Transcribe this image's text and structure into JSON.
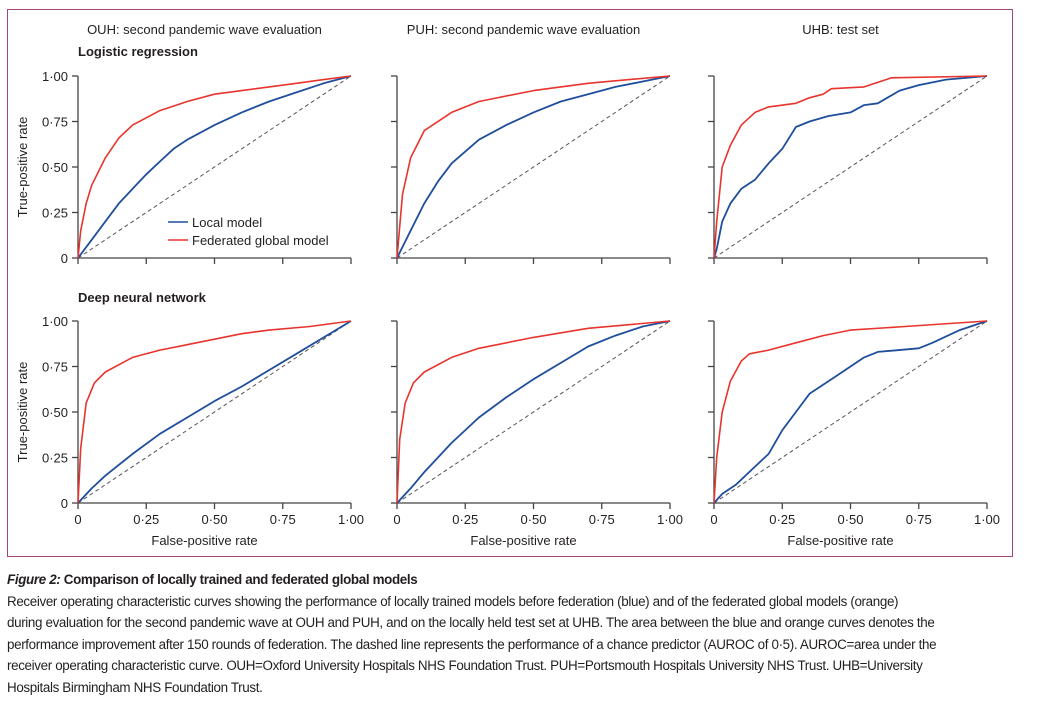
{
  "chart_data": {
    "type": "line",
    "xlabel": "False-positive rate",
    "ylabel": "True-positive rate",
    "xlim": [
      0,
      1
    ],
    "ylim": [
      0,
      1
    ],
    "xticks": [
      "0",
      "0·25",
      "0·50",
      "0·75",
      "1·00"
    ],
    "yticks": [
      "0",
      "0·25",
      "0·50",
      "0·75",
      "1·00"
    ],
    "legend": {
      "placement": "bottom-right",
      "entries": [
        "Local model",
        "Federated global model"
      ]
    },
    "colors": {
      "local": "#1f4e9c",
      "federated": "#e8342c",
      "chance": "#555555"
    },
    "columns": [
      "OUH: second pandemic wave evaluation",
      "PUH: second pandemic wave evaluation",
      "UHB: test set"
    ],
    "rows": [
      "Logistic regression",
      "Deep neural network"
    ],
    "panels": [
      {
        "row": 0,
        "col": 0,
        "local": [
          [
            0,
            0
          ],
          [
            0.05,
            0.1
          ],
          [
            0.1,
            0.2
          ],
          [
            0.15,
            0.3
          ],
          [
            0.2,
            0.38
          ],
          [
            0.25,
            0.46
          ],
          [
            0.3,
            0.53
          ],
          [
            0.35,
            0.6
          ],
          [
            0.4,
            0.65
          ],
          [
            0.5,
            0.73
          ],
          [
            0.6,
            0.8
          ],
          [
            0.7,
            0.86
          ],
          [
            0.8,
            0.91
          ],
          [
            0.9,
            0.96
          ],
          [
            1,
            1
          ]
        ],
        "federated": [
          [
            0,
            0
          ],
          [
            0.01,
            0.15
          ],
          [
            0.03,
            0.3
          ],
          [
            0.05,
            0.4
          ],
          [
            0.1,
            0.55
          ],
          [
            0.15,
            0.66
          ],
          [
            0.2,
            0.73
          ],
          [
            0.3,
            0.81
          ],
          [
            0.4,
            0.86
          ],
          [
            0.5,
            0.9
          ],
          [
            0.6,
            0.92
          ],
          [
            0.7,
            0.94
          ],
          [
            0.8,
            0.96
          ],
          [
            0.9,
            0.98
          ],
          [
            1,
            1
          ]
        ]
      },
      {
        "row": 0,
        "col": 1,
        "local": [
          [
            0,
            0
          ],
          [
            0.05,
            0.15
          ],
          [
            0.1,
            0.3
          ],
          [
            0.15,
            0.42
          ],
          [
            0.2,
            0.52
          ],
          [
            0.3,
            0.65
          ],
          [
            0.4,
            0.73
          ],
          [
            0.5,
            0.8
          ],
          [
            0.6,
            0.86
          ],
          [
            0.7,
            0.9
          ],
          [
            0.8,
            0.94
          ],
          [
            0.9,
            0.97
          ],
          [
            1,
            1
          ]
        ],
        "federated": [
          [
            0,
            0
          ],
          [
            0.02,
            0.35
          ],
          [
            0.05,
            0.55
          ],
          [
            0.1,
            0.7
          ],
          [
            0.2,
            0.8
          ],
          [
            0.3,
            0.86
          ],
          [
            0.5,
            0.92
          ],
          [
            0.7,
            0.96
          ],
          [
            0.85,
            0.98
          ],
          [
            1,
            1
          ]
        ]
      },
      {
        "row": 0,
        "col": 2,
        "local": [
          [
            0,
            0
          ],
          [
            0.01,
            0.05
          ],
          [
            0.03,
            0.2
          ],
          [
            0.06,
            0.3
          ],
          [
            0.1,
            0.38
          ],
          [
            0.15,
            0.43
          ],
          [
            0.2,
            0.52
          ],
          [
            0.25,
            0.6
          ],
          [
            0.3,
            0.72
          ],
          [
            0.35,
            0.75
          ],
          [
            0.42,
            0.78
          ],
          [
            0.5,
            0.8
          ],
          [
            0.55,
            0.84
          ],
          [
            0.6,
            0.85
          ],
          [
            0.68,
            0.92
          ],
          [
            0.75,
            0.95
          ],
          [
            0.85,
            0.98
          ],
          [
            1,
            1
          ]
        ],
        "federated": [
          [
            0,
            0
          ],
          [
            0.01,
            0.2
          ],
          [
            0.03,
            0.5
          ],
          [
            0.06,
            0.62
          ],
          [
            0.1,
            0.73
          ],
          [
            0.15,
            0.8
          ],
          [
            0.2,
            0.83
          ],
          [
            0.3,
            0.85
          ],
          [
            0.35,
            0.88
          ],
          [
            0.4,
            0.9
          ],
          [
            0.43,
            0.93
          ],
          [
            0.55,
            0.94
          ],
          [
            0.65,
            0.99
          ],
          [
            1,
            1
          ]
        ]
      },
      {
        "row": 1,
        "col": 0,
        "local": [
          [
            0,
            0
          ],
          [
            0.05,
            0.08
          ],
          [
            0.1,
            0.15
          ],
          [
            0.2,
            0.27
          ],
          [
            0.3,
            0.38
          ],
          [
            0.4,
            0.47
          ],
          [
            0.5,
            0.56
          ],
          [
            0.6,
            0.64
          ],
          [
            0.7,
            0.73
          ],
          [
            0.8,
            0.82
          ],
          [
            0.9,
            0.91
          ],
          [
            1,
            1
          ]
        ],
        "federated": [
          [
            0,
            0
          ],
          [
            0.01,
            0.3
          ],
          [
            0.03,
            0.55
          ],
          [
            0.06,
            0.66
          ],
          [
            0.1,
            0.72
          ],
          [
            0.2,
            0.8
          ],
          [
            0.3,
            0.84
          ],
          [
            0.4,
            0.87
          ],
          [
            0.5,
            0.9
          ],
          [
            0.6,
            0.93
          ],
          [
            0.7,
            0.95
          ],
          [
            0.85,
            0.97
          ],
          [
            1,
            1
          ]
        ]
      },
      {
        "row": 1,
        "col": 1,
        "local": [
          [
            0,
            0
          ],
          [
            0.05,
            0.08
          ],
          [
            0.1,
            0.17
          ],
          [
            0.2,
            0.33
          ],
          [
            0.3,
            0.47
          ],
          [
            0.4,
            0.58
          ],
          [
            0.5,
            0.68
          ],
          [
            0.6,
            0.77
          ],
          [
            0.7,
            0.86
          ],
          [
            0.8,
            0.92
          ],
          [
            0.9,
            0.97
          ],
          [
            1,
            1
          ]
        ],
        "federated": [
          [
            0,
            0
          ],
          [
            0.01,
            0.35
          ],
          [
            0.03,
            0.55
          ],
          [
            0.06,
            0.66
          ],
          [
            0.1,
            0.72
          ],
          [
            0.2,
            0.8
          ],
          [
            0.3,
            0.85
          ],
          [
            0.5,
            0.91
          ],
          [
            0.7,
            0.96
          ],
          [
            1,
            1
          ]
        ]
      },
      {
        "row": 1,
        "col": 2,
        "local": [
          [
            0,
            0
          ],
          [
            0.03,
            0.05
          ],
          [
            0.08,
            0.1
          ],
          [
            0.15,
            0.2
          ],
          [
            0.2,
            0.27
          ],
          [
            0.25,
            0.4
          ],
          [
            0.3,
            0.5
          ],
          [
            0.35,
            0.6
          ],
          [
            0.45,
            0.7
          ],
          [
            0.55,
            0.8
          ],
          [
            0.6,
            0.83
          ],
          [
            0.75,
            0.85
          ],
          [
            0.8,
            0.88
          ],
          [
            0.9,
            0.95
          ],
          [
            1,
            1
          ]
        ],
        "federated": [
          [
            0,
            0
          ],
          [
            0.01,
            0.25
          ],
          [
            0.03,
            0.5
          ],
          [
            0.06,
            0.67
          ],
          [
            0.1,
            0.78
          ],
          [
            0.13,
            0.82
          ],
          [
            0.2,
            0.84
          ],
          [
            0.3,
            0.88
          ],
          [
            0.4,
            0.92
          ],
          [
            0.5,
            0.95
          ],
          [
            0.7,
            0.97
          ],
          [
            1,
            1
          ]
        ]
      }
    ]
  },
  "caption": {
    "label": "Figure 2:",
    "title": "Comparison of locally trained and federated global models",
    "lines": [
      "Receiver operating characteristic curves showing the performance of locally trained models before federation (blue) and of the federated global models (orange)",
      "during evaluation for the second pandemic wave at OUH and PUH, and on the locally held test set at UHB. The area between the blue and orange curves denotes the",
      "performance improvement after 150 rounds of federation. The dashed line represents the performance of a chance predictor (AUROC of 0·5). AUROC=area under the",
      "receiver operating characteristic curve. OUH=Oxford University Hospitals NHS Foundation Trust. PUH=Portsmouth Hospitals University NHS Trust. UHB=University",
      "Hospitals Birmingham NHS Foundation Trust."
    ]
  }
}
